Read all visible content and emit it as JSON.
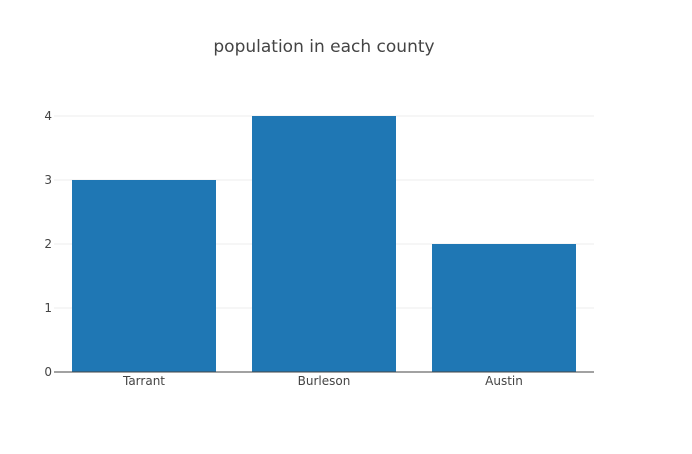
{
  "chart_data": {
    "type": "bar",
    "title": "population in each county",
    "categories": [
      "Tarrant",
      "Burleson",
      "Austin"
    ],
    "values": [
      3,
      4,
      2
    ],
    "xlabel": "",
    "ylabel": "",
    "ylim": [
      0,
      4
    ],
    "yticks": [
      0,
      1,
      2,
      3,
      4
    ],
    "grid": true,
    "colors": {
      "bar": "#1f77b4"
    }
  }
}
